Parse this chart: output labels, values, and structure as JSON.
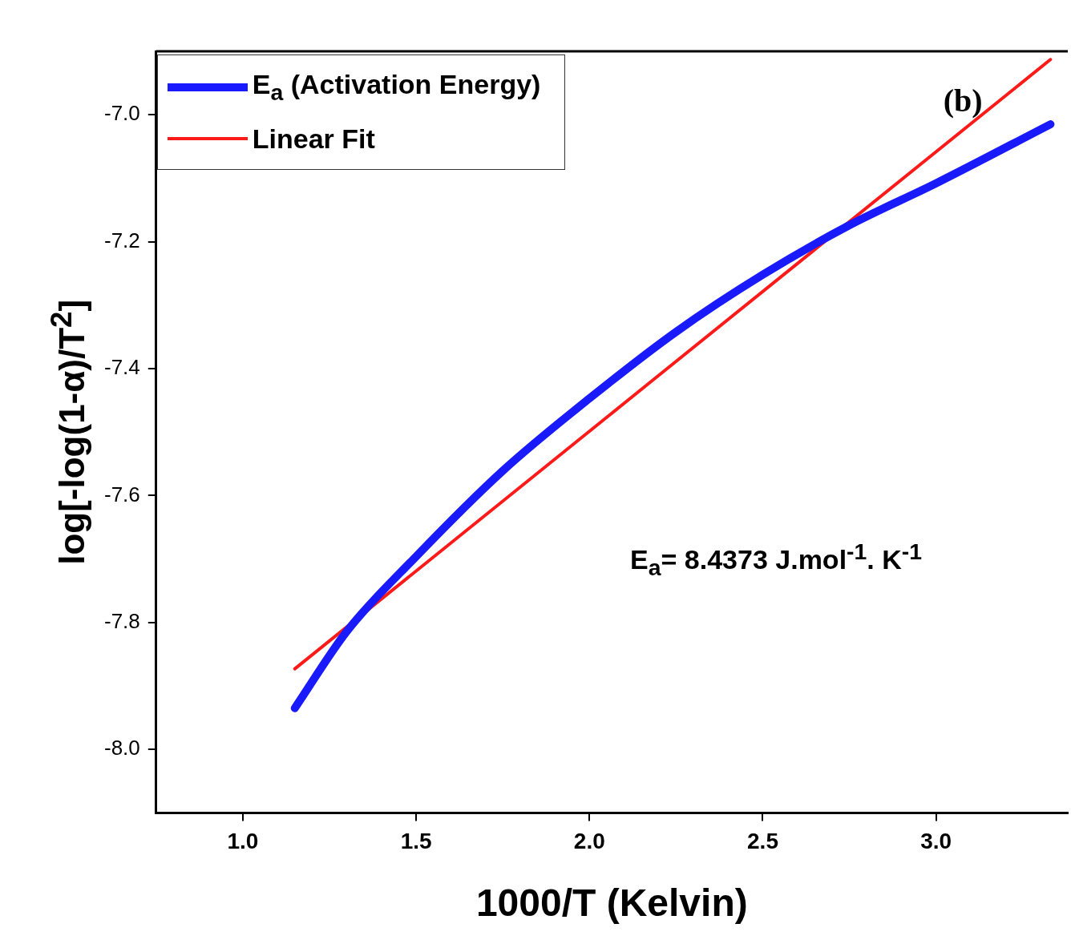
{
  "chart_data": {
    "type": "line",
    "xlabel": "1000/T (Kelvin)",
    "ylabel": "log[-log(1-α)/T$^{2}$]",
    "annotations": [
      "(b)",
      "E$_{a}$= 8.4373 J.mol$^{-1}$. K$^{-1}$"
    ],
    "xlim": [
      0.75,
      3.38
    ],
    "ylim": [
      -8.1,
      -6.9
    ],
    "xticks": [
      {
        "value": 1,
        "label": "1.0"
      },
      {
        "value": 1.5,
        "label": "1.5"
      },
      {
        "value": 2,
        "label": "2.0"
      },
      {
        "value": 2.5,
        "label": "2.5"
      },
      {
        "value": 3,
        "label": "3.0"
      }
    ],
    "yticks": [
      {
        "value": -8,
        "label": "-8.0"
      },
      {
        "value": -7.8,
        "label": "-7.8"
      },
      {
        "value": -7.6,
        "label": "-7.6"
      },
      {
        "value": -7.4,
        "label": "-7.4"
      },
      {
        "value": -7.2,
        "label": "-7.2"
      },
      {
        "value": -7,
        "label": "-7.0"
      }
    ],
    "grid": false,
    "legend": "top left",
    "marker": "none",
    "line_style": "solid",
    "series": [
      {
        "name": "E$_{a}$ (Activation Energy)",
        "color": "#1a1aff",
        "x": [
          1.15,
          1.3,
          1.5,
          1.75,
          2.0,
          2.25,
          2.5,
          2.75,
          3.0,
          3.33
        ],
        "values": [
          -7.935,
          -7.814,
          -7.696,
          -7.561,
          -7.447,
          -7.342,
          -7.252,
          -7.174,
          -7.108,
          -7.015
        ]
      },
      {
        "name": "Linear Fit",
        "color": "#ff1a1a",
        "x": [
          1.15,
          3.33
        ],
        "values": [
          -7.873,
          -6.913
        ]
      }
    ]
  }
}
